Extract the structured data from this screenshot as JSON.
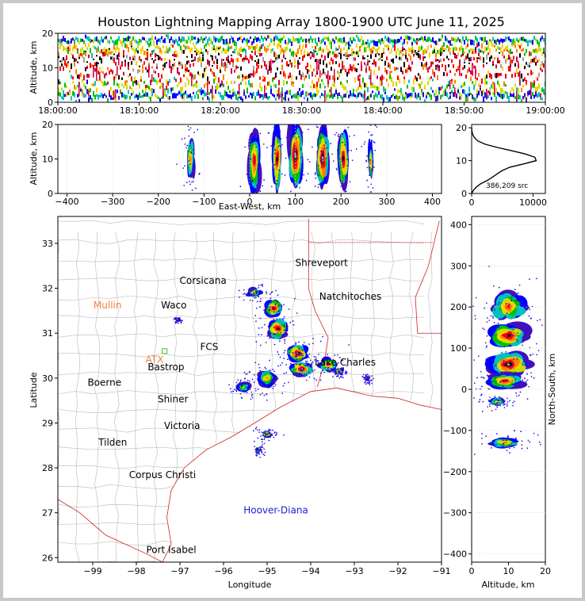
{
  "chart_data": {
    "title": "Houston Lightning Mapping Array 1800-1900 UTC June 11, 2025",
    "panels": {
      "time_altitude": {
        "type": "heatmap",
        "ylabel": "Altitude, km",
        "ylim": [
          0,
          20
        ],
        "yticks": [
          "0",
          "10",
          "20"
        ],
        "xticks": [
          "18:00:00",
          "18:10:00",
          "18:20:00",
          "18:30:00",
          "18:40:00",
          "18:50:00",
          "19:00:00"
        ]
      },
      "ew_altitude": {
        "type": "heatmap",
        "xlabel": "East-West, km",
        "ylabel": "Altitude, km",
        "xlim": [
          -420,
          420
        ],
        "ylim": [
          0,
          20
        ],
        "xticks": [
          "−400",
          "−300",
          "−200",
          "−100",
          "0",
          "100",
          "200",
          "300",
          "400"
        ],
        "yticks": [
          "0",
          "10",
          "20"
        ],
        "clusters": [
          {
            "x": -130,
            "z": 10,
            "w": 14,
            "h": 10,
            "peak": 0.5
          },
          {
            "x": 10,
            "z": 9,
            "w": 22,
            "h": 14,
            "peak": 0.8
          },
          {
            "x": 60,
            "z": 10,
            "w": 18,
            "h": 15,
            "peak": 0.9
          },
          {
            "x": 100,
            "z": 11,
            "w": 26,
            "h": 16,
            "peak": 1.0
          },
          {
            "x": 160,
            "z": 10,
            "w": 22,
            "h": 14,
            "peak": 0.95
          },
          {
            "x": 205,
            "z": 10,
            "w": 20,
            "h": 13,
            "peak": 0.85
          },
          {
            "x": 265,
            "z": 9,
            "w": 10,
            "h": 9,
            "peak": 0.5
          }
        ]
      },
      "altitude_histogram": {
        "type": "line",
        "annotation": "386,209 src",
        "xlim": [
          0,
          12000
        ],
        "ylim": [
          0,
          21
        ],
        "xticks": [
          "0",
          "10000"
        ],
        "yticks": [
          "0",
          "10",
          "20"
        ],
        "points": [
          [
            0,
            0
          ],
          [
            300,
            1
          ],
          [
            800,
            2
          ],
          [
            1500,
            3
          ],
          [
            2600,
            4
          ],
          [
            3400,
            5
          ],
          [
            4200,
            6
          ],
          [
            5000,
            7
          ],
          [
            6200,
            8
          ],
          [
            8500,
            9
          ],
          [
            10500,
            10
          ],
          [
            10300,
            11
          ],
          [
            8800,
            12
          ],
          [
            6500,
            13
          ],
          [
            4200,
            14
          ],
          [
            2200,
            15
          ],
          [
            1000,
            16
          ],
          [
            450,
            17
          ],
          [
            150,
            18
          ],
          [
            40,
            19
          ],
          [
            0,
            20
          ]
        ]
      },
      "plan_view": {
        "type": "scatter",
        "xlabel": "Longitude",
        "ylabel": "Latitude",
        "xlim": [
          -99.8,
          -91
        ],
        "ylim": [
          25.9,
          33.6
        ],
        "xticks": [
          "−99",
          "−98",
          "−97",
          "−96",
          "−95",
          "−94",
          "−93",
          "−92",
          "−91"
        ],
        "yticks": [
          "26",
          "27",
          "28",
          "29",
          "30",
          "31",
          "32",
          "33"
        ],
        "places": [
          {
            "name": "Shreveport",
            "lon": -93.75,
            "lat": 32.5,
            "color": "#000000"
          },
          {
            "name": "Corsicana",
            "lon": -96.47,
            "lat": 32.1,
            "color": "#000000"
          },
          {
            "name": "Mullin",
            "lon": -98.66,
            "lat": 31.55,
            "color": "#f08040"
          },
          {
            "name": "Waco",
            "lon": -97.14,
            "lat": 31.55,
            "color": "#000000"
          },
          {
            "name": "Natchitoches",
            "lon": -93.09,
            "lat": 31.75,
            "color": "#000000"
          },
          {
            "name": "FCS",
            "lon": -96.33,
            "lat": 30.62,
            "color": "#000000"
          },
          {
            "name": "ATX",
            "lon": -97.58,
            "lat": 30.34,
            "color": "#f08040"
          },
          {
            "name": "Bastrop",
            "lon": -97.32,
            "lat": 30.17,
            "color": "#000000"
          },
          {
            "name": "Lake Charles",
            "lon": -93.21,
            "lat": 30.28,
            "color": "#000000"
          },
          {
            "name": "Boerne",
            "lon": -98.73,
            "lat": 29.83,
            "color": "#000000"
          },
          {
            "name": "Shiner",
            "lon": -97.16,
            "lat": 29.46,
            "color": "#000000"
          },
          {
            "name": "Victoria",
            "lon": -96.95,
            "lat": 28.87,
            "color": "#000000"
          },
          {
            "name": "Tilden",
            "lon": -98.54,
            "lat": 28.5,
            "color": "#000000"
          },
          {
            "name": "Corpus Christi",
            "lon": -97.4,
            "lat": 27.77,
            "color": "#000000"
          },
          {
            "name": "Hoover-Diana",
            "lon": -94.8,
            "lat": 26.99,
            "color": "#2020d0"
          },
          {
            "name": "Port Isabel",
            "lon": -97.2,
            "lat": 26.1,
            "color": "#000000"
          }
        ],
        "clusters": [
          {
            "lon": -95.3,
            "lat": 31.9,
            "w": 0.25,
            "h": 0.15,
            "peak": 0.5
          },
          {
            "lon": -94.85,
            "lat": 31.55,
            "w": 0.35,
            "h": 0.3,
            "peak": 0.85
          },
          {
            "lon": -94.75,
            "lat": 31.1,
            "w": 0.4,
            "h": 0.35,
            "peak": 0.9
          },
          {
            "lon": -94.3,
            "lat": 30.55,
            "w": 0.4,
            "h": 0.3,
            "peak": 1.0
          },
          {
            "lon": -94.2,
            "lat": 30.2,
            "w": 0.4,
            "h": 0.25,
            "peak": 0.95
          },
          {
            "lon": -93.6,
            "lat": 30.3,
            "w": 0.3,
            "h": 0.25,
            "peak": 0.8
          },
          {
            "lon": -93.35,
            "lat": 30.15,
            "w": 0.15,
            "h": 0.12,
            "peak": 0.7
          },
          {
            "lon": -95.0,
            "lat": 30.0,
            "w": 0.35,
            "h": 0.3,
            "peak": 0.5
          },
          {
            "lon": -95.55,
            "lat": 29.8,
            "w": 0.3,
            "h": 0.2,
            "peak": 0.3
          },
          {
            "lon": -95.0,
            "lat": 28.75,
            "w": 0.2,
            "h": 0.12,
            "peak": 0.6
          },
          {
            "lon": -95.2,
            "lat": 28.4,
            "w": 0.1,
            "h": 0.12,
            "peak": 0.55
          },
          {
            "lon": -92.7,
            "lat": 30.0,
            "w": 0.08,
            "h": 0.08,
            "peak": 0.5
          },
          {
            "lon": -97.05,
            "lat": 31.3,
            "w": 0.06,
            "h": 0.06,
            "peak": 0.5
          }
        ]
      },
      "ns_altitude": {
        "type": "heatmap",
        "xlabel": "Altitude, km",
        "ylabel": "North-South, km",
        "xlim": [
          0,
          20
        ],
        "ylim": [
          -420,
          420
        ],
        "xticks": [
          "0",
          "10",
          "20"
        ],
        "yticks": [
          "−400",
          "−300",
          "−200",
          "−100",
          "0",
          "100",
          "200",
          "300",
          "400"
        ],
        "clusters": [
          {
            "z": 10,
            "y": 200,
            "w": 8,
            "h": 60,
            "peak": 0.6
          },
          {
            "z": 10,
            "y": 130,
            "w": 9,
            "h": 50,
            "peak": 0.85
          },
          {
            "z": 10,
            "y": 60,
            "w": 9,
            "h": 50,
            "peak": 1.0
          },
          {
            "z": 9,
            "y": 20,
            "w": 8,
            "h": 30,
            "peak": 0.75
          },
          {
            "z": 7,
            "y": -30,
            "w": 4,
            "h": 15,
            "peak": 0.4
          },
          {
            "z": 9,
            "y": -130,
            "w": 7,
            "h": 22,
            "peak": 0.5
          }
        ]
      }
    },
    "colors": {
      "density_scale": [
        "#4010c0",
        "#0000ff",
        "#00c0c0",
        "#00c000",
        "#c0e000",
        "#ffd000",
        "#ff8000",
        "#ff0000",
        "#d00040",
        "#000000",
        "#a0a0a0",
        "#ffffff"
      ],
      "county_lines": "#b8b8b8",
      "state_lines": "#d02020",
      "frame": "#c8c8c8"
    }
  }
}
